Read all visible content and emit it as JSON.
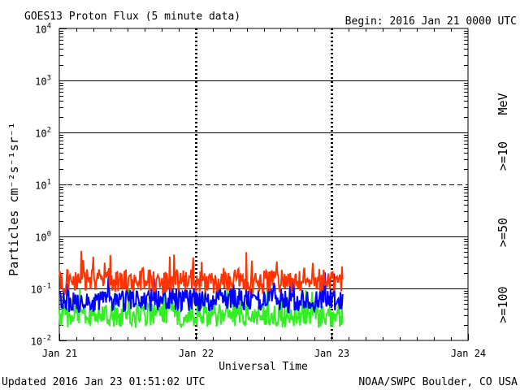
{
  "chart_data": {
    "type": "line",
    "title": "GOES13 Proton Flux (5 minute data)",
    "begin": "Begin: 2016 Jan 21 0000 UTC",
    "updated": "Updated 2016 Jan 23 01:51:02 UTC",
    "credit": "NOAA/SWPC Boulder, CO USA",
    "xlabel": "Universal Time",
    "ylabel": "Particles cm⁻²s⁻¹sr⁻¹",
    "x_unit": "days since Jan 21 0000 UTC",
    "xlim": [
      0,
      3
    ],
    "x_ticks": [
      {
        "x": 0,
        "label": "Jan 21"
      },
      {
        "x": 1,
        "label": "Jan 22"
      },
      {
        "x": 2,
        "label": "Jan 23"
      },
      {
        "x": 3,
        "label": "Jan 24"
      }
    ],
    "y_scale": "log",
    "ylim": [
      0.01,
      10000
    ],
    "y_ticks": [
      {
        "value": 10000,
        "base": "10",
        "exp": "4"
      },
      {
        "value": 1000,
        "base": "10",
        "exp": "3"
      },
      {
        "value": 100,
        "base": "10",
        "exp": "2"
      },
      {
        "value": 10,
        "base": "10",
        "exp": "1"
      },
      {
        "value": 1,
        "base": "10",
        "exp": "0"
      },
      {
        "value": 0.1,
        "base": "10",
        "exp": "-1"
      },
      {
        "value": 0.01,
        "base": "10",
        "exp": "-2"
      }
    ],
    "threshold_line": 10,
    "unit_label": "MeV",
    "series": [
      {
        "name": ">=10",
        "color": "#ff3300",
        "x": [
          0.0,
          0.1,
          0.2,
          0.3,
          0.4,
          0.5,
          0.6,
          0.7,
          0.8,
          0.9,
          1.0,
          1.1,
          1.2,
          1.3,
          1.4,
          1.5,
          1.6,
          1.7,
          1.8,
          1.9,
          2.0,
          2.08
        ],
        "values": [
          0.14,
          0.13,
          0.15,
          0.14,
          0.13,
          0.14,
          0.15,
          0.14,
          0.13,
          0.14,
          0.14,
          0.13,
          0.14,
          0.15,
          0.13,
          0.14,
          0.14,
          0.13,
          0.15,
          0.14,
          0.15,
          0.14
        ]
      },
      {
        "name": ">=50",
        "color": "#0000ff",
        "x": [
          0.0,
          0.1,
          0.2,
          0.3,
          0.4,
          0.5,
          0.6,
          0.7,
          0.8,
          0.9,
          1.0,
          1.1,
          1.2,
          1.3,
          1.4,
          1.5,
          1.6,
          1.7,
          1.8,
          1.9,
          2.0,
          2.08
        ],
        "values": [
          0.06,
          0.055,
          0.06,
          0.058,
          0.055,
          0.06,
          0.058,
          0.06,
          0.065,
          0.06,
          0.062,
          0.058,
          0.06,
          0.063,
          0.058,
          0.06,
          0.06,
          0.058,
          0.062,
          0.06,
          0.058,
          0.06
        ]
      },
      {
        "name": ">=100",
        "color": "#33ee22",
        "x": [
          0.0,
          0.1,
          0.2,
          0.3,
          0.4,
          0.5,
          0.6,
          0.7,
          0.8,
          0.9,
          1.0,
          1.1,
          1.2,
          1.3,
          1.4,
          1.5,
          1.6,
          1.7,
          1.8,
          1.9,
          2.0,
          2.08
        ],
        "values": [
          0.028,
          0.03,
          0.027,
          0.029,
          0.03,
          0.028,
          0.03,
          0.032,
          0.035,
          0.03,
          0.032,
          0.029,
          0.03,
          0.031,
          0.029,
          0.03,
          0.03,
          0.028,
          0.03,
          0.029,
          0.03,
          0.03
        ]
      }
    ],
    "legend": [
      {
        "label": "MeV",
        "color": "#000000"
      },
      {
        "label": ">=10",
        "color": "#ff3300"
      },
      {
        "label": ">=50",
        "color": "#6633cc"
      },
      {
        "label": ">=100",
        "color": "#33cc22"
      }
    ],
    "grid": true
  }
}
